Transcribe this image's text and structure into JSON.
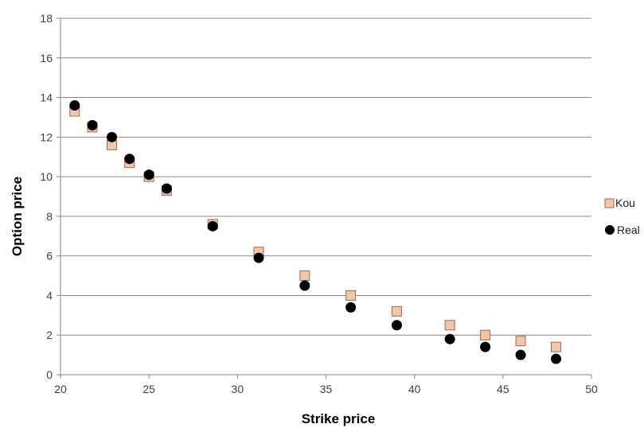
{
  "chart_data": {
    "type": "scatter",
    "xlabel": "Strike price",
    "ylabel": "Option price",
    "xlim": [
      20,
      50
    ],
    "ylim": [
      0,
      18
    ],
    "xticks": [
      20,
      25,
      30,
      35,
      40,
      45,
      50
    ],
    "yticks": [
      0,
      2,
      4,
      6,
      8,
      10,
      12,
      14,
      16,
      18
    ],
    "grid": "horizontal",
    "legend_position": "right",
    "colors": {
      "kou_fill": "#f4c6a8",
      "kou_stroke": "#9c6a52",
      "real_fill": "#000000",
      "grid": "#868686"
    },
    "series": [
      {
        "name": "Kou",
        "marker": "square",
        "x": [
          20.8,
          21.8,
          22.9,
          23.9,
          25.0,
          26.0,
          28.6,
          31.2,
          33.8,
          36.4,
          39.0,
          42.0,
          44.0,
          46.0,
          48.0
        ],
        "y": [
          13.3,
          12.5,
          11.6,
          10.7,
          10.0,
          9.3,
          7.6,
          6.2,
          5.0,
          4.0,
          3.2,
          2.5,
          2.0,
          1.7,
          1.4
        ]
      },
      {
        "name": "Real",
        "marker": "circle",
        "x": [
          20.8,
          21.8,
          22.9,
          23.9,
          25.0,
          26.0,
          28.6,
          31.2,
          33.8,
          36.4,
          39.0,
          42.0,
          44.0,
          46.0,
          48.0
        ],
        "y": [
          13.6,
          12.6,
          12.0,
          10.9,
          10.1,
          9.4,
          7.5,
          5.9,
          4.5,
          3.4,
          2.5,
          1.8,
          1.4,
          1.0,
          0.8
        ]
      }
    ]
  }
}
